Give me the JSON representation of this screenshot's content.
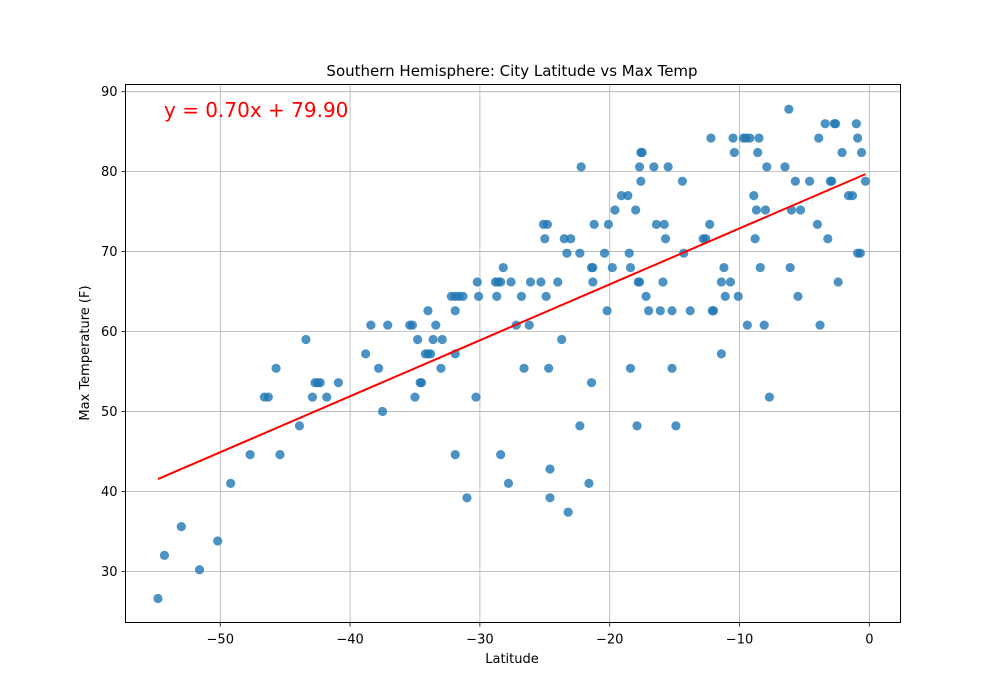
{
  "chart_data": {
    "type": "scatter",
    "title": "Southern Hemisphere: City Latitude vs Max Temp",
    "xlabel": "Latitude",
    "ylabel": "Max Temperature (F)",
    "xlim": [
      -57.3,
      2.4
    ],
    "ylim": [
      23.6,
      90.9
    ],
    "xticks": [
      -50,
      -40,
      -30,
      -20,
      -10,
      0
    ],
    "xtick_labels": [
      "−50",
      "−40",
      "−30",
      "−20",
      "−10",
      "0"
    ],
    "yticks": [
      30,
      40,
      50,
      60,
      70,
      80,
      90
    ],
    "ytick_labels": [
      "30",
      "40",
      "50",
      "60",
      "70",
      "80",
      "90"
    ],
    "grid": true,
    "point_color": "#1f77b4",
    "line_color": "#ff0000",
    "equation_text": "y = 0.70x + 79.90",
    "regression": {
      "slope": 0.7,
      "intercept": 79.9,
      "x_range": [
        -54.8,
        -0.3
      ]
    },
    "points": [
      [
        -54.8,
        26.6
      ],
      [
        -54.3,
        32.0
      ],
      [
        -53.0,
        35.6
      ],
      [
        -51.6,
        30.2
      ],
      [
        -50.2,
        33.8
      ],
      [
        -49.2,
        41.0
      ],
      [
        -47.7,
        44.6
      ],
      [
        -46.6,
        51.8
      ],
      [
        -46.3,
        51.8
      ],
      [
        -45.7,
        55.4
      ],
      [
        -45.4,
        44.6
      ],
      [
        -43.9,
        48.2
      ],
      [
        -43.4,
        59.0
      ],
      [
        -42.9,
        51.8
      ],
      [
        -42.7,
        53.6
      ],
      [
        -42.5,
        53.6
      ],
      [
        -42.3,
        53.6
      ],
      [
        -41.8,
        51.8
      ],
      [
        -40.9,
        53.6
      ],
      [
        -38.8,
        57.2
      ],
      [
        -38.4,
        60.8
      ],
      [
        -37.8,
        55.4
      ],
      [
        -37.5,
        50.0
      ],
      [
        -37.1,
        60.8
      ],
      [
        -35.4,
        60.8
      ],
      [
        -35.2,
        60.8
      ],
      [
        -35.0,
        51.8
      ],
      [
        -34.8,
        59.0
      ],
      [
        -34.6,
        53.6
      ],
      [
        -34.5,
        53.6
      ],
      [
        -34.2,
        57.2
      ],
      [
        -34.0,
        57.2
      ],
      [
        -34.0,
        62.6
      ],
      [
        -33.8,
        57.2
      ],
      [
        -33.6,
        59.0
      ],
      [
        -33.4,
        60.8
      ],
      [
        -33.0,
        55.4
      ],
      [
        -32.9,
        59.0
      ],
      [
        -32.2,
        64.4
      ],
      [
        -31.9,
        64.4
      ],
      [
        -31.9,
        62.6
      ],
      [
        -31.9,
        57.2
      ],
      [
        -31.9,
        44.6
      ],
      [
        -31.6,
        64.4
      ],
      [
        -31.3,
        64.4
      ],
      [
        -31.0,
        39.2
      ],
      [
        -30.3,
        51.8
      ],
      [
        -30.2,
        66.2
      ],
      [
        -30.1,
        64.4
      ],
      [
        -28.8,
        66.2
      ],
      [
        -28.7,
        64.4
      ],
      [
        -28.6,
        66.2
      ],
      [
        -28.4,
        66.2
      ],
      [
        -28.4,
        44.6
      ],
      [
        -28.2,
        68.0
      ],
      [
        -27.8,
        41.0
      ],
      [
        -27.6,
        66.2
      ],
      [
        -27.2,
        60.8
      ],
      [
        -26.8,
        64.4
      ],
      [
        -26.6,
        55.4
      ],
      [
        -26.2,
        60.8
      ],
      [
        -26.1,
        66.2
      ],
      [
        -25.3,
        66.2
      ],
      [
        -25.1,
        73.4
      ],
      [
        -25.0,
        71.6
      ],
      [
        -24.9,
        64.4
      ],
      [
        -24.8,
        73.4
      ],
      [
        -24.7,
        55.4
      ],
      [
        -24.6,
        42.8
      ],
      [
        -24.6,
        39.2
      ],
      [
        -24.0,
        66.2
      ],
      [
        -23.7,
        59.0
      ],
      [
        -23.5,
        71.6
      ],
      [
        -23.3,
        69.8
      ],
      [
        -23.2,
        37.4
      ],
      [
        -23.0,
        71.6
      ],
      [
        -22.3,
        48.2
      ],
      [
        -22.3,
        69.8
      ],
      [
        -22.2,
        80.6
      ],
      [
        -21.6,
        41.0
      ],
      [
        -21.4,
        53.6
      ],
      [
        -21.4,
        68.0
      ],
      [
        -21.3,
        66.2
      ],
      [
        -21.3,
        68.0
      ],
      [
        -21.2,
        73.4
      ],
      [
        -20.4,
        69.8
      ],
      [
        -20.2,
        62.6
      ],
      [
        -20.1,
        73.4
      ],
      [
        -19.8,
        68.0
      ],
      [
        -19.6,
        75.2
      ],
      [
        -19.1,
        77.0
      ],
      [
        -18.6,
        77.0
      ],
      [
        -18.5,
        69.8
      ],
      [
        -18.4,
        68.0
      ],
      [
        -18.4,
        55.4
      ],
      [
        -18.0,
        75.2
      ],
      [
        -17.9,
        48.2
      ],
      [
        -17.8,
        66.2
      ],
      [
        -17.7,
        66.2
      ],
      [
        -17.7,
        80.6
      ],
      [
        -17.6,
        82.4
      ],
      [
        -17.6,
        78.8
      ],
      [
        -17.5,
        82.4
      ],
      [
        -17.2,
        64.4
      ],
      [
        -17.0,
        62.6
      ],
      [
        -16.6,
        80.6
      ],
      [
        -16.4,
        73.4
      ],
      [
        -16.1,
        62.6
      ],
      [
        -15.9,
        66.2
      ],
      [
        -15.8,
        73.4
      ],
      [
        -15.7,
        71.6
      ],
      [
        -15.5,
        80.6
      ],
      [
        -15.2,
        62.6
      ],
      [
        -15.2,
        55.4
      ],
      [
        -14.9,
        48.2
      ],
      [
        -14.4,
        78.8
      ],
      [
        -14.3,
        69.8
      ],
      [
        -13.8,
        62.6
      ],
      [
        -12.8,
        71.6
      ],
      [
        -12.6,
        71.6
      ],
      [
        -12.3,
        73.4
      ],
      [
        -12.2,
        84.2
      ],
      [
        -12.1,
        62.6
      ],
      [
        -12.0,
        62.6
      ],
      [
        -11.4,
        66.2
      ],
      [
        -11.4,
        57.2
      ],
      [
        -11.2,
        68.0
      ],
      [
        -11.1,
        64.4
      ],
      [
        -10.7,
        66.2
      ],
      [
        -10.5,
        84.2
      ],
      [
        -10.4,
        82.4
      ],
      [
        -10.1,
        64.4
      ],
      [
        -9.7,
        84.2
      ],
      [
        -9.5,
        84.2
      ],
      [
        -9.4,
        60.8
      ],
      [
        -9.2,
        84.2
      ],
      [
        -8.9,
        77.0
      ],
      [
        -8.8,
        71.6
      ],
      [
        -8.7,
        75.2
      ],
      [
        -8.6,
        82.4
      ],
      [
        -8.5,
        84.2
      ],
      [
        -8.4,
        68.0
      ],
      [
        -8.1,
        60.8
      ],
      [
        -8.0,
        75.2
      ],
      [
        -7.9,
        80.6
      ],
      [
        -7.7,
        51.8
      ],
      [
        -6.5,
        80.6
      ],
      [
        -6.2,
        87.8
      ],
      [
        -6.1,
        68.0
      ],
      [
        -6.0,
        75.2
      ],
      [
        -5.7,
        78.8
      ],
      [
        -5.5,
        64.4
      ],
      [
        -5.3,
        75.2
      ],
      [
        -4.6,
        78.8
      ],
      [
        -4.0,
        73.4
      ],
      [
        -3.9,
        84.2
      ],
      [
        -3.8,
        60.8
      ],
      [
        -3.4,
        86.0
      ],
      [
        -3.2,
        71.6
      ],
      [
        -3.0,
        78.8
      ],
      [
        -2.9,
        78.8
      ],
      [
        -2.7,
        86.0
      ],
      [
        -2.6,
        86.0
      ],
      [
        -2.4,
        66.2
      ],
      [
        -2.1,
        82.4
      ],
      [
        -1.6,
        77.0
      ],
      [
        -1.3,
        77.0
      ],
      [
        -1.0,
        86.0
      ],
      [
        -0.9,
        84.2
      ],
      [
        -0.9,
        69.8
      ],
      [
        -0.7,
        69.8
      ],
      [
        -0.6,
        82.4
      ],
      [
        -0.3,
        78.8
      ]
    ]
  }
}
